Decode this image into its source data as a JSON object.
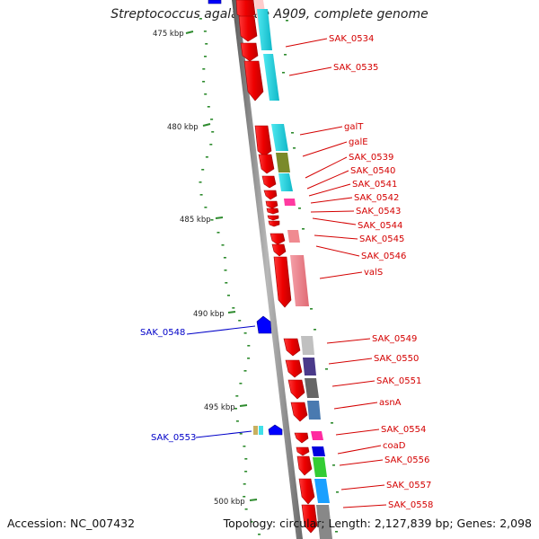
{
  "title": "Streptococcus agalactiae A909, complete genome",
  "footer": {
    "accession": "Accession: NC_007432",
    "summary": "Topology: circular; Length: 2,127,839 bp; Genes: 2,098"
  },
  "colors": {
    "forward_gene": "#ff0000",
    "reverse_gene": "#0000ff",
    "forward_label": "#d40000",
    "reverse_label": "#0000c8",
    "gc_dots": "#2e8b2e",
    "backbone": "#808080"
  },
  "kbp_marks": [
    "475 kbp",
    "480 kbp",
    "485 kbp",
    "490 kbp",
    "495 kbp",
    "500 kbp"
  ],
  "forward_labels": [
    "SAK_0534",
    "SAK_0535",
    "galT",
    "galE",
    "SAK_0539",
    "SAK_0540",
    "SAK_0541",
    "SAK_0542",
    "SAK_0543",
    "SAK_0544",
    "SAK_0545",
    "SAK_0546",
    "valS",
    "SAK_0549",
    "SAK_0550",
    "SAK_0551",
    "asnA",
    "SAK_0554",
    "coaD",
    "SAK_0556",
    "SAK_0557",
    "SAK_0558"
  ],
  "reverse_labels": [
    "SAK_0548",
    "SAK_0553"
  ]
}
